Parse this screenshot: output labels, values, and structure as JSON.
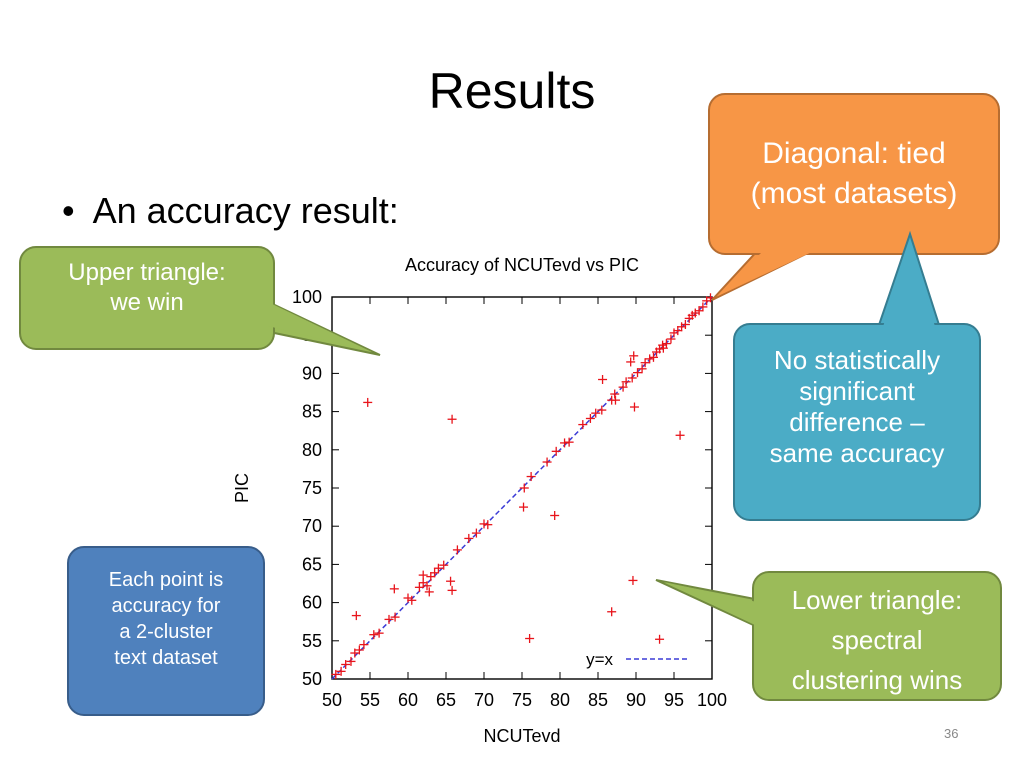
{
  "slide": {
    "title": "Results",
    "bullet": "An accuracy result:",
    "page_number": "36"
  },
  "callouts": {
    "upper": "Upper triangle:\nwe win",
    "diagonal": "Diagonal: tied\n(most datasets)",
    "nosig": "No statistically\nsignificant\ndifference –\nsame accuracy",
    "point": "Each point is\naccuracy for\na 2-cluster\ntext dataset",
    "lower": "Lower triangle:\nspectral\nclustering wins"
  },
  "colors": {
    "green_callout": "#9bbb59",
    "orange_callout": "#f79646",
    "teal_callout": "#4bacc6",
    "blue_callout": "#4f81bd",
    "points": "#e8141b",
    "diagonal_line": "#3b3bd6"
  },
  "chart_data": {
    "type": "scatter",
    "title": "Accuracy of NCUTevd vs PIC",
    "xlabel": "NCUTevd",
    "ylabel": "PIC",
    "xlim": [
      50,
      100
    ],
    "ylim": [
      50,
      100
    ],
    "xticks": [
      50,
      55,
      60,
      65,
      70,
      75,
      80,
      85,
      90,
      95,
      100
    ],
    "yticks": [
      50,
      55,
      60,
      65,
      70,
      75,
      80,
      85,
      90,
      95,
      100
    ],
    "legend": {
      "label": "y=x",
      "position": "bottom-right"
    },
    "series": [
      {
        "points": [
          [
            50.5,
            50.6
          ],
          [
            51.2,
            51.0
          ],
          [
            51.8,
            51.9
          ],
          [
            52.5,
            52.3
          ],
          [
            53.0,
            53.4
          ],
          [
            53.6,
            53.8
          ],
          [
            54.2,
            54.5
          ],
          [
            55.5,
            55.8
          ],
          [
            56.2,
            56.0
          ],
          [
            57.5,
            57.8
          ],
          [
            58.3,
            58.1
          ],
          [
            60.0,
            60.6
          ],
          [
            60.5,
            60.3
          ],
          [
            61.5,
            62.0
          ],
          [
            62.0,
            62.6
          ],
          [
            62.5,
            62.2
          ],
          [
            63.0,
            63.4
          ],
          [
            63.5,
            63.9
          ],
          [
            64.0,
            64.5
          ],
          [
            64.7,
            64.9
          ],
          [
            66.5,
            66.9
          ],
          [
            68.0,
            68.4
          ],
          [
            69.0,
            69.1
          ],
          [
            70.0,
            70.3
          ],
          [
            70.5,
            70.2
          ],
          [
            75.3,
            75.0
          ],
          [
            76.2,
            76.5
          ],
          [
            78.3,
            78.4
          ],
          [
            79.5,
            79.8
          ],
          [
            80.6,
            80.9
          ],
          [
            81.2,
            81.0
          ],
          [
            83.0,
            83.3
          ],
          [
            84.0,
            84.1
          ],
          [
            84.7,
            84.8
          ],
          [
            85.5,
            85.2
          ],
          [
            86.8,
            86.5
          ],
          [
            87.2,
            87.3
          ],
          [
            88.3,
            88.2
          ],
          [
            88.7,
            88.9
          ],
          [
            89.5,
            89.4
          ],
          [
            90.2,
            90.1
          ],
          [
            90.8,
            90.6
          ],
          [
            91.2,
            91.4
          ],
          [
            91.8,
            91.9
          ],
          [
            92.3,
            92.1
          ],
          [
            92.7,
            92.8
          ],
          [
            93.1,
            93.2
          ],
          [
            93.5,
            93.7
          ],
          [
            94.0,
            93.9
          ],
          [
            94.6,
            94.5
          ],
          [
            95.0,
            95.3
          ],
          [
            95.5,
            95.6
          ],
          [
            96.0,
            96.1
          ],
          [
            96.5,
            96.4
          ],
          [
            97.0,
            97.2
          ],
          [
            97.4,
            97.6
          ],
          [
            97.8,
            97.9
          ],
          [
            98.3,
            98.2
          ],
          [
            98.8,
            98.7
          ],
          [
            99.3,
            99.5
          ],
          [
            99.8,
            99.9
          ],
          [
            54.7,
            86.2
          ],
          [
            65.8,
            84.0
          ],
          [
            53.2,
            58.3
          ],
          [
            58.2,
            61.8
          ],
          [
            62.0,
            63.6
          ],
          [
            62.8,
            61.4
          ],
          [
            65.6,
            62.8
          ],
          [
            65.8,
            61.6
          ],
          [
            75.2,
            72.5
          ],
          [
            79.3,
            71.4
          ],
          [
            76.0,
            55.3
          ],
          [
            85.6,
            89.2
          ],
          [
            87.3,
            86.5
          ],
          [
            89.3,
            91.5
          ],
          [
            89.7,
            92.3
          ],
          [
            89.8,
            85.6
          ],
          [
            93.6,
            93.3
          ],
          [
            89.6,
            62.9
          ],
          [
            86.8,
            58.8
          ],
          [
            93.1,
            55.2
          ],
          [
            95.8,
            81.9
          ]
        ]
      }
    ]
  }
}
